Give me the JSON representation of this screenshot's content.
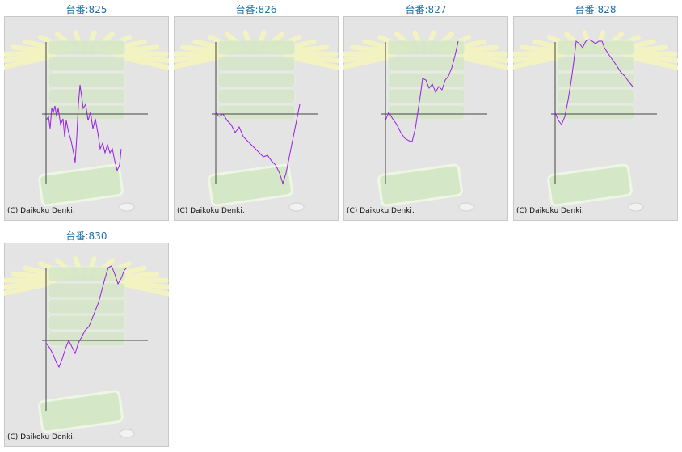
{
  "chart_data": [
    {
      "type": "line",
      "title": "台番:825",
      "credit": "(C) Daikoku Denki.",
      "color": "#9a1ee6",
      "xlim": [
        0,
        126
      ],
      "ylim": [
        -88,
        88
      ],
      "x": [
        0,
        3,
        5,
        7,
        9,
        11,
        13,
        15,
        18,
        21,
        23,
        25,
        28,
        31,
        34,
        36,
        38,
        40,
        42,
        44,
        46,
        49,
        52,
        55,
        58,
        61,
        64,
        67,
        70,
        73,
        76,
        79,
        82,
        85,
        88,
        91,
        93
      ],
      "values": [
        -9,
        -4,
        -19,
        6,
        1,
        9,
        -4,
        6,
        -14,
        -7,
        -29,
        -9,
        -24,
        -34,
        -49,
        -61,
        -29,
        11,
        35,
        21,
        6,
        11,
        -9,
        1,
        -19,
        -7,
        -24,
        -44,
        -37,
        -49,
        -39,
        -49,
        -44,
        -59,
        -71,
        -64,
        -44
      ]
    },
    {
      "type": "line",
      "title": "台番:826",
      "credit": "(C) Daikoku Denki.",
      "color": "#9a1ee6",
      "xlim": [
        0,
        126
      ],
      "ylim": [
        -88,
        88
      ],
      "x": [
        0,
        4,
        9,
        14,
        19,
        24,
        29,
        34,
        39,
        44,
        49,
        54,
        59,
        64,
        69,
        74,
        79,
        83,
        87,
        91,
        95,
        99,
        104
      ],
      "values": [
        1,
        -4,
        -1,
        -9,
        -14,
        -24,
        -17,
        -29,
        -34,
        -39,
        -44,
        -49,
        -54,
        -52,
        -59,
        -64,
        -74,
        -87,
        -74,
        -54,
        -34,
        -14,
        11
      ]
    },
    {
      "type": "line",
      "title": "台番:827",
      "credit": "(C) Daikoku Denki.",
      "color": "#9a1ee6",
      "xlim": [
        0,
        126
      ],
      "ylim": [
        -88,
        88
      ],
      "x": [
        0,
        4,
        9,
        14,
        19,
        24,
        29,
        33,
        37,
        40,
        43,
        46,
        50,
        54,
        58,
        62,
        66,
        70,
        74,
        78,
        82,
        86,
        90
      ],
      "values": [
        -9,
        1,
        -7,
        -14,
        -24,
        -31,
        -34,
        -35,
        -19,
        1,
        21,
        43,
        41,
        31,
        36,
        26,
        33,
        29,
        41,
        46,
        56,
        71,
        89
      ]
    },
    {
      "type": "line",
      "title": "台番:828",
      "credit": "(C) Daikoku Denki.",
      "color": "#9a1ee6",
      "xlim": [
        0,
        126
      ],
      "ylim": [
        -88,
        88
      ],
      "x": [
        0,
        4,
        8,
        12,
        16,
        20,
        23,
        26,
        30,
        34,
        38,
        42,
        46,
        50,
        54,
        58,
        61,
        66,
        71,
        76,
        81,
        86,
        91,
        96
      ],
      "values": [
        1,
        -9,
        -14,
        -4,
        16,
        41,
        63,
        89,
        86,
        81,
        89,
        91,
        89,
        86,
        89,
        89,
        81,
        73,
        66,
        59,
        51,
        46,
        39,
        33
      ]
    },
    {
      "type": "line",
      "title": "台番:830",
      "credit": "(C) Daikoku Denki.",
      "color": "#9a1ee6",
      "xlim": [
        0,
        126
      ],
      "ylim": [
        -88,
        88
      ],
      "x": [
        0,
        5,
        9,
        13,
        16,
        20,
        24,
        28,
        32,
        36,
        40,
        44,
        48,
        53,
        57,
        61,
        65,
        69,
        73,
        77,
        81,
        85,
        89,
        93,
        97,
        100
      ],
      "values": [
        -4,
        -11,
        -19,
        -29,
        -34,
        -24,
        -11,
        -1,
        -9,
        -17,
        -4,
        3,
        11,
        16,
        26,
        36,
        46,
        61,
        76,
        89,
        91,
        81,
        69,
        76,
        86,
        89
      ]
    }
  ]
}
